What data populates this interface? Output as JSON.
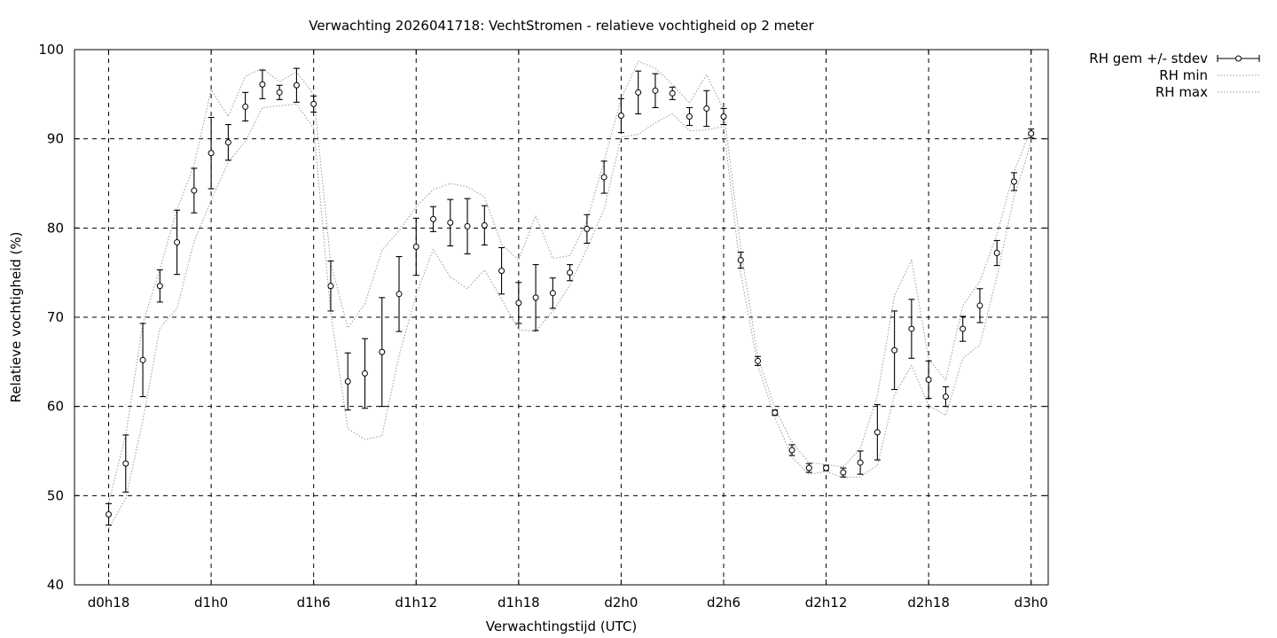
{
  "chart_data": {
    "type": "line",
    "title": "Verwachting 2026041718: VechtStromen - relatieve vochtigheid op 2 meter",
    "xlabel": "Verwachtingstijd (UTC)",
    "ylabel": "Relatieve vochtigheid (%)",
    "ylim": [
      40,
      100
    ],
    "xlim": [
      -2,
      55
    ],
    "grid": true,
    "legend_position": "outside-top-right",
    "x_tick_values": [
      0,
      6,
      12,
      18,
      24,
      30,
      36,
      42,
      48,
      54
    ],
    "x_tick_labels": [
      "d0h18",
      "d1h0",
      "d1h6",
      "d1h12",
      "d1h18",
      "d2h0",
      "d2h6",
      "d2h12",
      "d2h18",
      "d3h0"
    ],
    "y_tick_values": [
      40,
      50,
      60,
      70,
      80,
      90,
      100
    ],
    "y_tick_labels": [
      "40",
      "50",
      "60",
      "70",
      "80",
      "90",
      "100"
    ],
    "x": [
      0,
      1,
      2,
      3,
      4,
      5,
      6,
      7,
      8,
      9,
      10,
      11,
      12,
      13,
      14,
      15,
      16,
      17,
      18,
      19,
      20,
      21,
      22,
      23,
      24,
      25,
      26,
      27,
      28,
      29,
      30,
      31,
      32,
      33,
      34,
      35,
      36,
      37,
      38,
      39,
      40,
      41,
      42,
      43,
      44,
      45,
      46,
      47,
      48,
      49,
      50,
      51,
      52,
      53,
      54
    ],
    "series": [
      {
        "name": "RH gem +/- stdev",
        "style": "errorbars",
        "values": [
          47.9,
          53.6,
          65.2,
          73.5,
          78.4,
          84.2,
          88.4,
          89.6,
          93.6,
          96.1,
          95.2,
          96.0,
          93.9,
          73.5,
          62.8,
          63.7,
          66.1,
          72.6,
          77.9,
          81.0,
          80.6,
          80.2,
          80.3,
          75.2,
          71.6,
          72.2,
          72.7,
          75.0,
          79.9,
          85.7,
          92.6,
          95.2,
          95.4,
          95.1,
          92.5,
          93.4,
          92.5,
          76.4,
          65.1,
          59.3,
          55.1,
          53.1,
          53.1,
          52.6,
          53.7,
          57.1,
          66.3,
          68.7,
          63.0,
          61.1,
          68.7,
          71.3,
          77.2,
          85.2,
          90.6
        ],
        "stdev": [
          1.2,
          3.2,
          4.1,
          1.8,
          3.6,
          2.5,
          4.0,
          2.0,
          1.6,
          1.6,
          0.8,
          1.9,
          0.9,
          2.8,
          3.2,
          3.9,
          6.1,
          4.2,
          3.2,
          1.4,
          2.6,
          3.1,
          2.2,
          2.6,
          2.3,
          3.7,
          1.7,
          0.9,
          1.6,
          1.8,
          1.9,
          2.4,
          1.9,
          0.7,
          1.0,
          2.0,
          0.9,
          0.9,
          0.5,
          0.3,
          0.6,
          0.5,
          0.3,
          0.5,
          1.3,
          3.1,
          4.4,
          3.3,
          2.1,
          1.1,
          1.4,
          1.9,
          1.4,
          1.0,
          0.5
        ]
      },
      {
        "name": "RH min",
        "style": "dotted",
        "values": [
          46.3,
          49.7,
          58.4,
          68.8,
          71.0,
          78.5,
          83.1,
          87.4,
          89.7,
          93.5,
          93.7,
          93.9,
          91.2,
          70.6,
          57.5,
          56.3,
          56.7,
          65.7,
          72.5,
          77.6,
          74.5,
          73.2,
          75.3,
          72.0,
          68.6,
          68.4,
          70.7,
          73.6,
          77.7,
          82.1,
          90.2,
          90.5,
          91.8,
          92.8,
          90.9,
          91.0,
          91.4,
          74.9,
          64.6,
          58.8,
          54.3,
          52.4,
          52.7,
          52.0,
          52.1,
          53.4,
          61.3,
          64.6,
          60.1,
          59.0,
          65.4,
          66.9,
          74.6,
          83.5,
          89.6
        ]
      },
      {
        "name": "RH max",
        "style": "dotted",
        "values": [
          49.2,
          56.8,
          69.3,
          75.4,
          82.1,
          87.0,
          95.5,
          92.5,
          97.0,
          97.9,
          96.4,
          97.5,
          95.0,
          76.1,
          68.8,
          71.5,
          77.5,
          79.7,
          82.4,
          84.3,
          85.0,
          84.6,
          83.5,
          78.2,
          76.4,
          81.4,
          76.6,
          76.9,
          80.8,
          87.5,
          94.5,
          98.7,
          97.9,
          96.1,
          94.0,
          97.2,
          93.3,
          77.7,
          65.6,
          59.8,
          56.0,
          53.7,
          53.5,
          53.2,
          55.3,
          61.2,
          72.4,
          76.4,
          65.3,
          63.0,
          71.3,
          74.0,
          79.3,
          86.3,
          91.1
        ]
      }
    ]
  }
}
